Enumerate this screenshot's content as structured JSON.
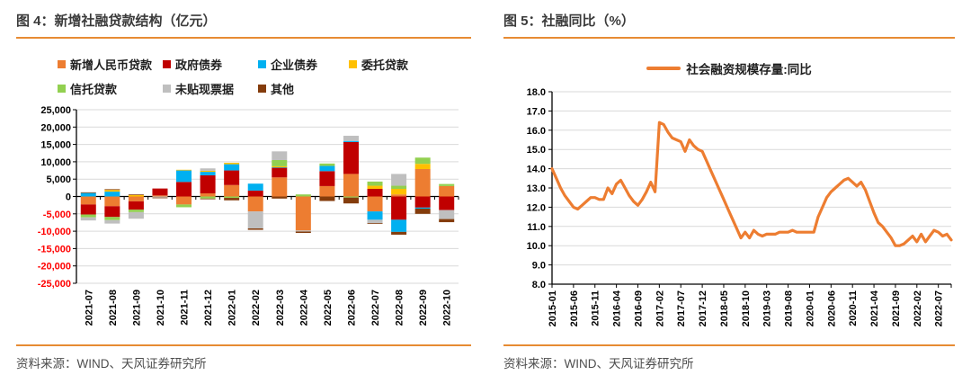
{
  "source_note": "资料来源：WIND、天风证券研究所",
  "colors": {
    "accent_rule": "#e78b33",
    "grid": "#d9d9d9",
    "axis": "#000000",
    "neg_tick": "#ff0000",
    "title_text": "#3b3b3b",
    "source_text": "#4d4d4d"
  },
  "chart_data": [
    {
      "type": "bar",
      "stacked": true,
      "title": "图 4：新增社融贷款结构（亿元）",
      "ylim": [
        -25000,
        25000
      ],
      "ytick_step": 5000,
      "grid": true,
      "legend_position": "top",
      "categories": [
        "2021-07",
        "2021-08",
        "2021-09",
        "2021-10",
        "2021-11",
        "2021-12",
        "2022-01",
        "2022-02",
        "2022-03",
        "2022-04",
        "2022-05",
        "2022-06",
        "2022-07",
        "2022-08",
        "2022-09",
        "2022-10"
      ],
      "series": [
        {
          "name": "新增人民币贷款",
          "color": "#ED7D31",
          "values": [
            -2300,
            -2800,
            -1400,
            300,
            -2300,
            900,
            3300,
            -4300,
            5500,
            -9800,
            3000,
            6500,
            -4300,
            600,
            7900,
            3000
          ]
        },
        {
          "name": "政府债券",
          "color": "#C00000",
          "values": [
            -2900,
            -3100,
            -2400,
            2000,
            4200,
            5200,
            4200,
            1700,
            2800,
            0,
            4300,
            9200,
            2200,
            -6700,
            -3200,
            -3900
          ]
        },
        {
          "name": "企业债券",
          "color": "#00B0F0",
          "values": [
            1000,
            1400,
            0,
            0,
            3300,
            1000,
            1800,
            2000,
            100,
            0,
            1500,
            300,
            -2400,
            -3500,
            -300,
            0
          ]
        },
        {
          "name": "委托贷款",
          "color": "#FFC000",
          "values": [
            0,
            500,
            400,
            0,
            200,
            300,
            400,
            0,
            300,
            0,
            0,
            0,
            900,
            1600,
            1500,
            0
          ]
        },
        {
          "name": "信托贷款",
          "color": "#92D050",
          "values": [
            -800,
            -900,
            -700,
            0,
            -800,
            -600,
            -400,
            0,
            1800,
            600,
            700,
            -300,
            1200,
            900,
            1800,
            600
          ]
        },
        {
          "name": "未贴现票据",
          "color": "#BFBFBF",
          "values": [
            -900,
            -1000,
            -1900,
            -300,
            0,
            700,
            0,
            -4900,
            2500,
            -300,
            0,
            1500,
            -1000,
            3400,
            0,
            -2600
          ]
        },
        {
          "name": "其他",
          "color": "#843C0C",
          "values": [
            200,
            200,
            200,
            -200,
            0,
            -200,
            -700,
            -400,
            -600,
            -400,
            -1300,
            -1700,
            -200,
            -800,
            -1500,
            -900
          ]
        }
      ]
    },
    {
      "type": "line",
      "title": "图 5：社融同比（%）",
      "legend": "社会融资规模存量:同比",
      "line_color": "#ED7D31",
      "ylim": [
        8,
        18
      ],
      "ytick_step": 1,
      "grid": true,
      "legend_position": "top",
      "x_start_month": "2015-01",
      "xtick_labels": [
        "2015-01",
        "2015-06",
        "2015-11",
        "2016-04",
        "2016-09",
        "2017-02",
        "2017-07",
        "2017-12",
        "2018-05",
        "2018-10",
        "2019-03",
        "2019-08",
        "2020-01",
        "2020-06",
        "2020-11",
        "2021-04",
        "2021-09",
        "2022-02",
        "2022-07"
      ],
      "xtick_indices": [
        0,
        5,
        10,
        15,
        20,
        25,
        30,
        35,
        40,
        45,
        50,
        55,
        60,
        65,
        70,
        75,
        80,
        85,
        90
      ],
      "values": [
        14.0,
        13.5,
        13.0,
        12.6,
        12.3,
        12.0,
        11.9,
        12.1,
        12.3,
        12.5,
        12.5,
        12.4,
        12.4,
        13.0,
        12.7,
        13.2,
        13.4,
        13.0,
        12.6,
        12.3,
        12.1,
        12.4,
        12.8,
        13.3,
        12.8,
        16.4,
        16.3,
        15.9,
        15.6,
        15.5,
        15.4,
        14.9,
        15.5,
        15.2,
        15.0,
        14.9,
        14.4,
        13.9,
        13.4,
        12.9,
        12.4,
        11.9,
        11.4,
        10.9,
        10.4,
        10.7,
        10.4,
        10.8,
        10.6,
        10.5,
        10.6,
        10.6,
        10.6,
        10.7,
        10.7,
        10.7,
        10.8,
        10.7,
        10.7,
        10.7,
        10.7,
        10.7,
        11.5,
        12.0,
        12.5,
        12.8,
        13.0,
        13.2,
        13.4,
        13.5,
        13.3,
        13.1,
        13.3,
        12.9,
        12.3,
        11.7,
        11.2,
        11.0,
        10.7,
        10.4,
        10.0,
        10.0,
        10.1,
        10.3,
        10.5,
        10.2,
        10.6,
        10.2,
        10.5,
        10.8,
        10.7,
        10.5,
        10.6,
        10.3
      ]
    }
  ]
}
